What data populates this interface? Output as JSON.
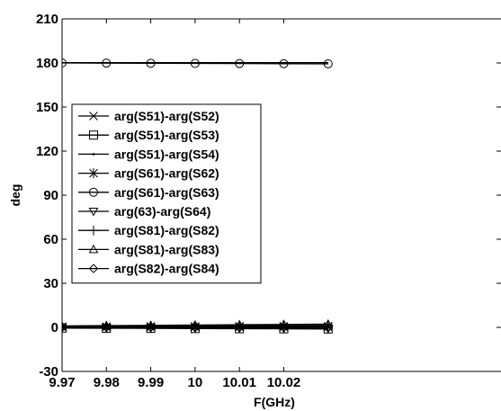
{
  "chart_data": {
    "type": "line",
    "xlabel": "F(GHz)",
    "ylabel": "deg",
    "xlim": [
      9.97,
      10.03
    ],
    "ylim": [
      -30,
      210
    ],
    "x_ticks": [
      "9.97",
      "9.98",
      "9.99",
      "10",
      "10.01",
      "10.02"
    ],
    "y_ticks": [
      "-30",
      "0",
      "30",
      "60",
      "90",
      "120",
      "150",
      "180",
      "210"
    ],
    "grid": false,
    "legend_position": "left",
    "x": [
      9.97,
      9.98,
      9.99,
      10.0,
      10.01,
      10.02,
      10.03
    ],
    "series": [
      {
        "name": "arg(S51)-arg(S52)",
        "marker": "x",
        "values": [
          0.3,
          0.3,
          0.3,
          0.3,
          0.3,
          0.3,
          0.3
        ]
      },
      {
        "name": "arg(S51)-arg(S53)",
        "marker": "square",
        "values": [
          -0.5,
          -0.6,
          -0.7,
          -0.8,
          -0.9,
          -1.0,
          -1.1
        ]
      },
      {
        "name": "arg(S51)-arg(S54)",
        "marker": "point",
        "values": [
          0.1,
          0.1,
          0.1,
          0.1,
          0.1,
          0.1,
          0.1
        ]
      },
      {
        "name": "arg(S61)-arg(S62)",
        "marker": "asterisk",
        "values": [
          0.5,
          0.5,
          0.6,
          0.6,
          0.7,
          0.7,
          0.8
        ]
      },
      {
        "name": "arg(S61)-arg(S63)",
        "marker": "circle",
        "values": [
          180,
          179.9,
          179.8,
          179.7,
          179.6,
          179.5,
          179.4
        ]
      },
      {
        "name": "arg(63)-arg(S64)",
        "marker": "triangle-down",
        "values": [
          -0.3,
          -0.4,
          -0.5,
          -0.5,
          -0.6,
          -0.7,
          -0.8
        ]
      },
      {
        "name": "arg(S81)-arg(S82)",
        "marker": "plus",
        "values": [
          0.8,
          0.9,
          1.0,
          1.1,
          1.2,
          1.3,
          1.4
        ]
      },
      {
        "name": "arg(S81)-arg(S83)",
        "marker": "triangle-up",
        "values": [
          1.0,
          1.2,
          1.4,
          1.6,
          1.8,
          2.0,
          2.2
        ]
      },
      {
        "name": "arg(S82)-arg(S84)",
        "marker": "diamond",
        "values": [
          0.0,
          0.0,
          0.0,
          0.0,
          0.0,
          0.0,
          0.0
        ]
      },
      {
        "name": "",
        "marker": "none",
        "values": [
          180.2,
          180.2,
          180.2,
          180.2,
          180.2,
          180.2,
          180.2
        ]
      }
    ]
  }
}
